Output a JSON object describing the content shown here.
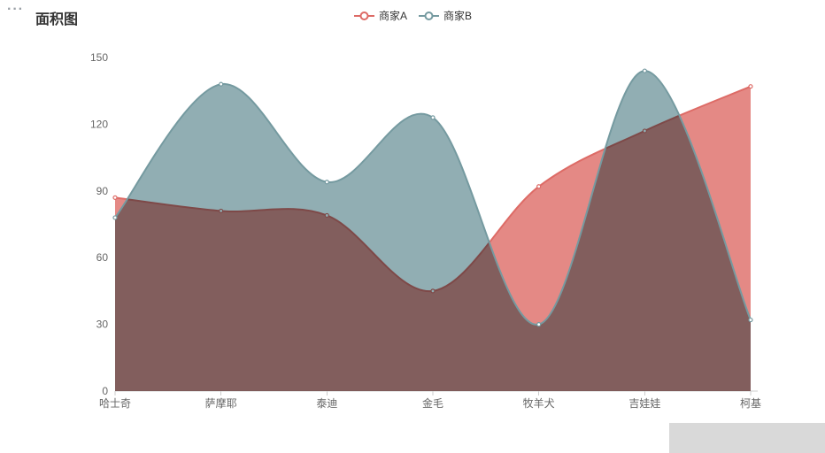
{
  "page": {
    "more_label": "···"
  },
  "title": "面积图",
  "chart_data": {
    "type": "area",
    "smooth": true,
    "grid": false,
    "legend_position": "top",
    "categories": [
      "哈士奇",
      "萨摩耶",
      "泰迪",
      "金毛",
      "牧羊犬",
      "吉娃娃",
      "柯基"
    ],
    "series": [
      {
        "name": "商家A",
        "color": "#dd6b66",
        "values": [
          87,
          81,
          79,
          45,
          92,
          117,
          137
        ]
      },
      {
        "name": "商家B",
        "color": "#759aa0",
        "values": [
          78,
          138,
          94,
          123,
          30,
          144,
          32
        ]
      }
    ],
    "xlabel": "",
    "ylabel": "",
    "ylim": [
      0,
      150
    ],
    "yticks": [
      0,
      30,
      60,
      90,
      120,
      150
    ],
    "area_opacity": 0.8,
    "axis_color": "#cccccc",
    "label_color": "#666666"
  }
}
